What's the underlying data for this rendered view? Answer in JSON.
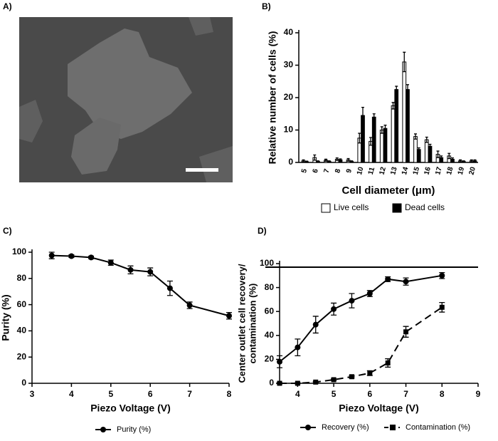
{
  "image_panel": {
    "panel_label": "A)"
  },
  "chart_data": [
    {
      "type": "bar",
      "panel_label": "B)",
      "ylabel": "Relative number of cells (%)",
      "xlabel": "Cell diameter (μm)",
      "categories": [
        "5",
        "6",
        "7",
        "8",
        "9",
        "10",
        "11",
        "12",
        "13",
        "14",
        "15",
        "16",
        "17",
        "18",
        "19",
        "20"
      ],
      "series": [
        {
          "name": "Live cells",
          "color": "#ffffff",
          "values": [
            0.5,
            1.5,
            0.7,
            1,
            0.8,
            7.5,
            6.5,
            10,
            17.5,
            31,
            8,
            7,
            2.5,
            2,
            0.5,
            0.5
          ],
          "errors": [
            0.3,
            0.8,
            0.3,
            0.4,
            0.4,
            1.5,
            1.2,
            1,
            1,
            3,
            0.8,
            0.8,
            1,
            0.8,
            0.3,
            0.3
          ]
        },
        {
          "name": "Dead cells",
          "color": "#000000",
          "values": [
            0.2,
            0.3,
            0.3,
            0.8,
            0.3,
            14.5,
            14,
            10.5,
            22.5,
            22.5,
            4,
            5,
            1.5,
            1,
            0.3,
            0.5
          ],
          "errors": [
            0.2,
            0.2,
            0.2,
            0.3,
            0.2,
            2.5,
            1,
            1,
            1,
            1.5,
            0.5,
            0.6,
            0.5,
            0.4,
            0.2,
            0.3
          ]
        }
      ],
      "ylim": [
        0,
        40
      ],
      "yticks": [
        0,
        10,
        20,
        30,
        40
      ]
    },
    {
      "type": "line",
      "panel_label": "C)",
      "ylabel": "Purity (%)",
      "xlabel": "Piezo Voltage (V)",
      "x": [
        3.5,
        4,
        4.5,
        5,
        5.5,
        6,
        6.5,
        7,
        8
      ],
      "series": [
        {
          "name": "Purity (%)",
          "color": "#000000",
          "marker": "circle",
          "dashed": false,
          "values": [
            97.5,
            97,
            96,
            92,
            86.5,
            85,
            72.5,
            59.5,
            51.5
          ],
          "errors": [
            2.5,
            1,
            1,
            2,
            3,
            3,
            5.5,
            2.5,
            2.5
          ]
        }
      ],
      "xlim": [
        3,
        8
      ],
      "xticks": [
        3,
        4,
        5,
        6,
        7,
        8
      ],
      "ylim": [
        0,
        100
      ],
      "yticks": [
        0,
        20,
        40,
        60,
        80,
        100
      ]
    },
    {
      "type": "line",
      "panel_label": "D)",
      "ylabel": [
        "Center outlet cell recovery/",
        "contamination (%)"
      ],
      "xlabel": "Piezo Voltage (V)",
      "x": [
        3.5,
        4,
        4.5,
        5,
        5.5,
        6,
        6.5,
        7,
        8
      ],
      "series": [
        {
          "name": "Recovery (%)",
          "color": "#000000",
          "marker": "circle",
          "dashed": false,
          "values": [
            18,
            30,
            49,
            62,
            69,
            75,
            87,
            85,
            90
          ],
          "errors": [
            5,
            7,
            7,
            5,
            6,
            2.5,
            2,
            3,
            2.5
          ]
        },
        {
          "name": "Contamination (%)",
          "color": "#000000",
          "marker": "square",
          "dashed": true,
          "values": [
            0,
            0,
            1,
            3,
            5.5,
            8.5,
            17,
            43,
            63.5
          ],
          "errors": [
            0.5,
            0.5,
            0.5,
            0.7,
            1,
            2,
            3.5,
            4.5,
            4
          ]
        }
      ],
      "hline": 97,
      "xlim": [
        3.5,
        9
      ],
      "xticks": [
        4,
        5,
        6,
        7,
        8,
        9
      ],
      "ylim": [
        0,
        100
      ],
      "yticks": [
        0,
        20,
        40,
        60,
        80,
        100
      ]
    }
  ]
}
